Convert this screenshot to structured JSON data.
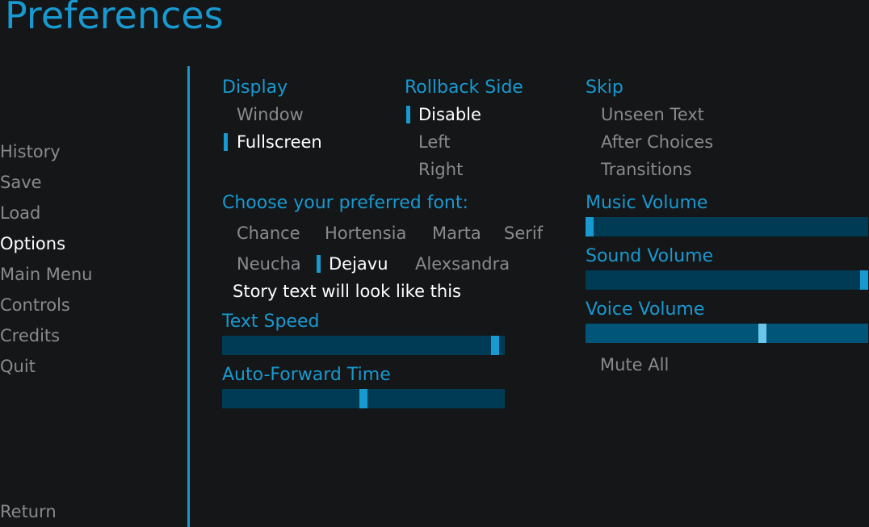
{
  "title": "Preferences",
  "nav": [
    {
      "label": "History",
      "selected": false
    },
    {
      "label": "Save",
      "selected": false
    },
    {
      "label": "Load",
      "selected": false
    },
    {
      "label": "Options",
      "selected": true
    },
    {
      "label": "Main Menu",
      "selected": false
    },
    {
      "label": "Controls",
      "selected": false
    },
    {
      "label": "Credits",
      "selected": false
    },
    {
      "label": "Quit",
      "selected": false
    }
  ],
  "return_label": "Return",
  "display": {
    "label": "Display",
    "options": [
      "Window",
      "Fullscreen"
    ],
    "selected": "Fullscreen"
  },
  "rollback": {
    "label": "Rollback Side",
    "options": [
      "Disable",
      "Left",
      "Right"
    ],
    "selected": "Disable"
  },
  "skip": {
    "label": "Skip",
    "options": [
      "Unseen Text",
      "After Choices",
      "Transitions"
    ]
  },
  "font": {
    "label": "Choose your preferred font:",
    "options": [
      "Chance",
      "Hortensia",
      "Marta",
      "Serif",
      "Neucha",
      "Dejavu",
      "Alexsandra"
    ],
    "selected": "Dejavu",
    "sample": "Story text will look like this"
  },
  "sliders": {
    "text_speed": {
      "label": "Text Speed",
      "value": 0.98
    },
    "auto_forward": {
      "label": "Auto-Forward Time",
      "value": 0.5
    },
    "music": {
      "label": "Music Volume",
      "value": 0.0
    },
    "sound": {
      "label": "Sound Volume",
      "value": 1.0
    },
    "voice": {
      "label": "Voice Volume",
      "value": 0.63,
      "hovered": true
    }
  },
  "mute_all": "Mute All",
  "colors": {
    "accent": "#1899cf",
    "background": "#141618",
    "bar": "#003b55",
    "idle_text": "#8a8a8a",
    "selected_text": "#ffffff"
  }
}
